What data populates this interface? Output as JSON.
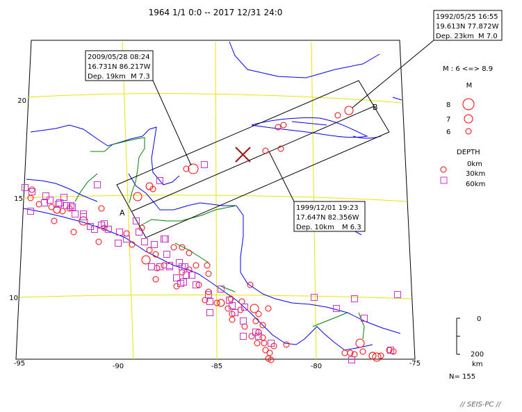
{
  "title": "1964 1/1 0:0 -- 2017 12/31 24:0",
  "axes": {
    "x_ticks": [
      "-95",
      "-90",
      "-85",
      "-80",
      "-75"
    ],
    "y_ticks": [
      "20",
      "15",
      "10"
    ]
  },
  "callouts": [
    {
      "date": "2009/05/28 08:24",
      "coord": "16.731N  86.217W",
      "depth": "Dep. 19km",
      "mag": "M 7.3"
    },
    {
      "date": "1992/05/25 16:55",
      "coord": "19.613N  77.872W",
      "depth": "Dep. 23km",
      "mag": "M 7.0"
    },
    {
      "date": "1999/12/01 19:23",
      "coord": "17.647N  82.356W",
      "depth": "Dep. 10km",
      "mag": "M 6.3"
    }
  ],
  "section": {
    "start_label": "A",
    "end_label": "B"
  },
  "legend": {
    "mag_range": "M : 6 <=> 8.9",
    "mag_title": "M",
    "mag_items": [
      "8",
      "7",
      "6"
    ],
    "depth_title": "DEPTH",
    "depth_items": [
      "0km",
      "30km",
      "60km"
    ]
  },
  "depth_scale": {
    "top": "0",
    "bottom": "200",
    "unit": "km"
  },
  "count": "N= 155",
  "logo": "// SEIS-PC //",
  "colors": {
    "grid": "#e6e600",
    "coast": "#0000ff",
    "border": "#008000",
    "shallow": "#ff0000",
    "deep": "#cc33cc",
    "box": "#000000",
    "epicenter": "#a01010"
  }
}
